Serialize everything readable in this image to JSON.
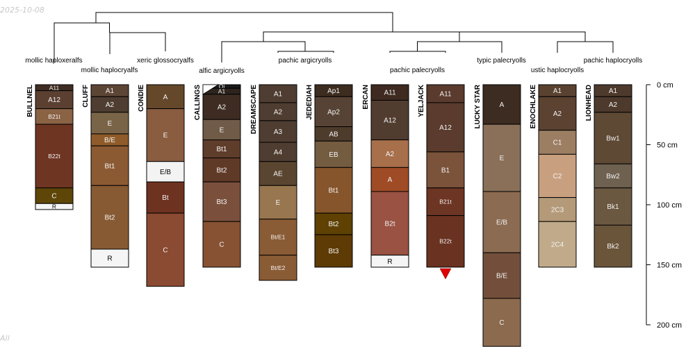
{
  "stamp": "2025-10-08",
  "footer": "All",
  "depth_axis": {
    "unit": "cm",
    "max": 200,
    "ticks": [
      {
        "value": 0,
        "label": "0 cm"
      },
      {
        "value": 50,
        "label": "50 cm"
      },
      {
        "value": 100,
        "label": "100 cm"
      },
      {
        "value": 150,
        "label": "150 cm"
      },
      {
        "value": 200,
        "label": "200 cm"
      }
    ]
  },
  "subgroup_labels": [
    "mollic haploxeralfs",
    "mollic haplocryalfs",
    "xeric glossocryalfs",
    "alfic argicryolls",
    "pachic argicryolls",
    "pachic palecryolls",
    "typic palecryolls",
    "ustic haplocryolls",
    "pachic haplocryolls"
  ],
  "profiles": [
    {
      "name": "BULLNEL",
      "horizons": [
        {
          "name": "A11",
          "top": 0,
          "bottom": 5,
          "color": "#3f2c22"
        },
        {
          "name": "A12",
          "top": 5,
          "bottom": 20,
          "color": "#5b3f31"
        },
        {
          "name": "B21t",
          "top": 20,
          "bottom": 33,
          "color": "#8a6244"
        },
        {
          "name": "B22t",
          "top": 33,
          "bottom": 86,
          "color": "#6f3523"
        },
        {
          "name": "C",
          "top": 86,
          "bottom": 99,
          "color": "#5e4608"
        },
        {
          "name": "R",
          "top": 99,
          "bottom": 104,
          "color": "#f5f5f5"
        }
      ]
    },
    {
      "name": "CLUFF",
      "horizons": [
        {
          "name": "A1",
          "top": 0,
          "bottom": 10,
          "color": "#5d4535"
        },
        {
          "name": "A2",
          "top": 10,
          "bottom": 23,
          "color": "#4f3d31"
        },
        {
          "name": "E",
          "top": 23,
          "bottom": 41,
          "color": "#7a6448"
        },
        {
          "name": "B/E",
          "top": 41,
          "bottom": 51,
          "color": "#8f5b2a"
        },
        {
          "name": "Bt1",
          "top": 51,
          "bottom": 84,
          "color": "#8b5a33"
        },
        {
          "name": "Bt2",
          "top": 84,
          "bottom": 137,
          "color": "#875a33"
        },
        {
          "name": "R",
          "top": 137,
          "bottom": 152,
          "color": "#f5f5f5"
        }
      ]
    },
    {
      "name": "CONDIE",
      "horizons": [
        {
          "name": "A",
          "top": 0,
          "bottom": 20,
          "color": "#65472a"
        },
        {
          "name": "E",
          "top": 20,
          "bottom": 64,
          "color": "#8a5d40"
        },
        {
          "name": "E/B",
          "top": 64,
          "bottom": 81,
          "color": "#f3f3f3"
        },
        {
          "name": "Bt",
          "top": 81,
          "bottom": 107,
          "color": "#6e3220"
        },
        {
          "name": "C",
          "top": 107,
          "bottom": 168,
          "color": "#8b4a32"
        }
      ]
    },
    {
      "name": "CALLINGS",
      "horizons": [
        {
          "name": "Oi",
          "top": 0,
          "bottom": 3,
          "color": "#1a1a1a"
        },
        {
          "name": "A1",
          "top": 3,
          "bottom": 8,
          "color": "#2e241e"
        },
        {
          "name": "A2",
          "top": 8,
          "bottom": 29,
          "color": "#3e2c22"
        },
        {
          "name": "E",
          "top": 29,
          "bottom": 46,
          "color": "#6f5b48"
        },
        {
          "name": "Bt1",
          "top": 46,
          "bottom": 61,
          "color": "#5f3d2b"
        },
        {
          "name": "Bt2",
          "top": 61,
          "bottom": 81,
          "color": "#5f3a27"
        },
        {
          "name": "Bt3",
          "top": 81,
          "bottom": 114,
          "color": "#7a503d"
        },
        {
          "name": "C",
          "top": 114,
          "bottom": 152,
          "color": "#875233"
        }
      ]
    },
    {
      "name": "DREAMSCAPE",
      "horizons": [
        {
          "name": "A1",
          "top": 0,
          "bottom": 15,
          "color": "#4f3d31"
        },
        {
          "name": "A2",
          "top": 15,
          "bottom": 30,
          "color": "#4f3d31"
        },
        {
          "name": "A3",
          "top": 30,
          "bottom": 48,
          "color": "#4f3d31"
        },
        {
          "name": "A4",
          "top": 48,
          "bottom": 64,
          "color": "#4f3d31"
        },
        {
          "name": "AE",
          "top": 64,
          "bottom": 84,
          "color": "#5a4530"
        },
        {
          "name": "E",
          "top": 84,
          "bottom": 112,
          "color": "#987650"
        },
        {
          "name": "Bt/E1",
          "top": 112,
          "bottom": 142,
          "color": "#8a5c35"
        },
        {
          "name": "Bt/E2",
          "top": 142,
          "bottom": 163,
          "color": "#8a5c35"
        }
      ]
    },
    {
      "name": "JEDEDIAH",
      "horizons": [
        {
          "name": "Ap1",
          "top": 0,
          "bottom": 10,
          "color": "#3d2c20"
        },
        {
          "name": "Ap2",
          "top": 10,
          "bottom": 35,
          "color": "#574335"
        },
        {
          "name": "AB",
          "top": 35,
          "bottom": 47,
          "color": "#4d3b2b"
        },
        {
          "name": "EB",
          "top": 47,
          "bottom": 69,
          "color": "#745c40"
        },
        {
          "name": "Bt1",
          "top": 69,
          "bottom": 107,
          "color": "#86552b"
        },
        {
          "name": "Bt2",
          "top": 107,
          "bottom": 125,
          "color": "#5e4103"
        },
        {
          "name": "Bt3",
          "top": 125,
          "bottom": 152,
          "color": "#5e3b05"
        }
      ]
    },
    {
      "name": "ERCAN",
      "horizons": [
        {
          "name": "A11",
          "top": 0,
          "bottom": 13,
          "color": "#3e2a20"
        },
        {
          "name": "A12",
          "top": 13,
          "bottom": 46,
          "color": "#513c30"
        },
        {
          "name": "A2",
          "top": 46,
          "bottom": 69,
          "color": "#a86f4b"
        },
        {
          "name": "A",
          "top": 69,
          "bottom": 89,
          "color": "#9f4b26"
        },
        {
          "name": "B2t",
          "top": 89,
          "bottom": 142,
          "color": "#9a5242"
        },
        {
          "name": "R",
          "top": 142,
          "bottom": 152,
          "color": "#f5f5f5"
        }
      ]
    },
    {
      "name": "YELJACK",
      "horizons": [
        {
          "name": "A11",
          "top": 0,
          "bottom": 15,
          "color": "#5a3b2d"
        },
        {
          "name": "A12",
          "top": 15,
          "bottom": 56,
          "color": "#5a3b2d"
        },
        {
          "name": "B1",
          "top": 56,
          "bottom": 86,
          "color": "#7b533b"
        },
        {
          "name": "B21t",
          "top": 86,
          "bottom": 109,
          "color": "#6d3523"
        },
        {
          "name": "B22t",
          "top": 109,
          "bottom": 152,
          "color": "#6a3220"
        }
      ]
    },
    {
      "name": "LUCKY STAR",
      "horizons": [
        {
          "name": "A",
          "top": 0,
          "bottom": 33,
          "color": "#3d2c21"
        },
        {
          "name": "E",
          "top": 33,
          "bottom": 89,
          "color": "#8a7059"
        },
        {
          "name": "E/B",
          "top": 89,
          "bottom": 140,
          "color": "#8b6b51"
        },
        {
          "name": "B/E",
          "top": 140,
          "bottom": 178,
          "color": "#734f3b"
        },
        {
          "name": "C",
          "top": 178,
          "bottom": 218,
          "color": "#8c6a4e"
        }
      ]
    },
    {
      "name": "ENOCHLAKE",
      "horizons": [
        {
          "name": "A1",
          "top": 0,
          "bottom": 10,
          "color": "#5a4230"
        },
        {
          "name": "A2",
          "top": 10,
          "bottom": 38,
          "color": "#5b4231"
        },
        {
          "name": "C1",
          "top": 38,
          "bottom": 58,
          "color": "#9c7e63"
        },
        {
          "name": "C2",
          "top": 58,
          "bottom": 94,
          "color": "#c9a07f"
        },
        {
          "name": "2C3",
          "top": 94,
          "bottom": 114,
          "color": "#b49a78"
        },
        {
          "name": "2C4",
          "top": 114,
          "bottom": 152,
          "color": "#c0aa8a"
        }
      ]
    },
    {
      "name": "LIONHEAD",
      "horizons": [
        {
          "name": "A1",
          "top": 0,
          "bottom": 10,
          "color": "#4d3a2c"
        },
        {
          "name": "A2",
          "top": 10,
          "bottom": 23,
          "color": "#4d3a2c"
        },
        {
          "name": "Bw1",
          "top": 23,
          "bottom": 66,
          "color": "#5e4934"
        },
        {
          "name": "Bw2",
          "top": 66,
          "bottom": 86,
          "color": "#6e6150"
        },
        {
          "name": "Bk1",
          "top": 86,
          "bottom": 117,
          "color": "#6b5841"
        },
        {
          "name": "Bk2",
          "top": 117,
          "bottom": 152,
          "color": "#6a553b"
        }
      ]
    }
  ]
}
